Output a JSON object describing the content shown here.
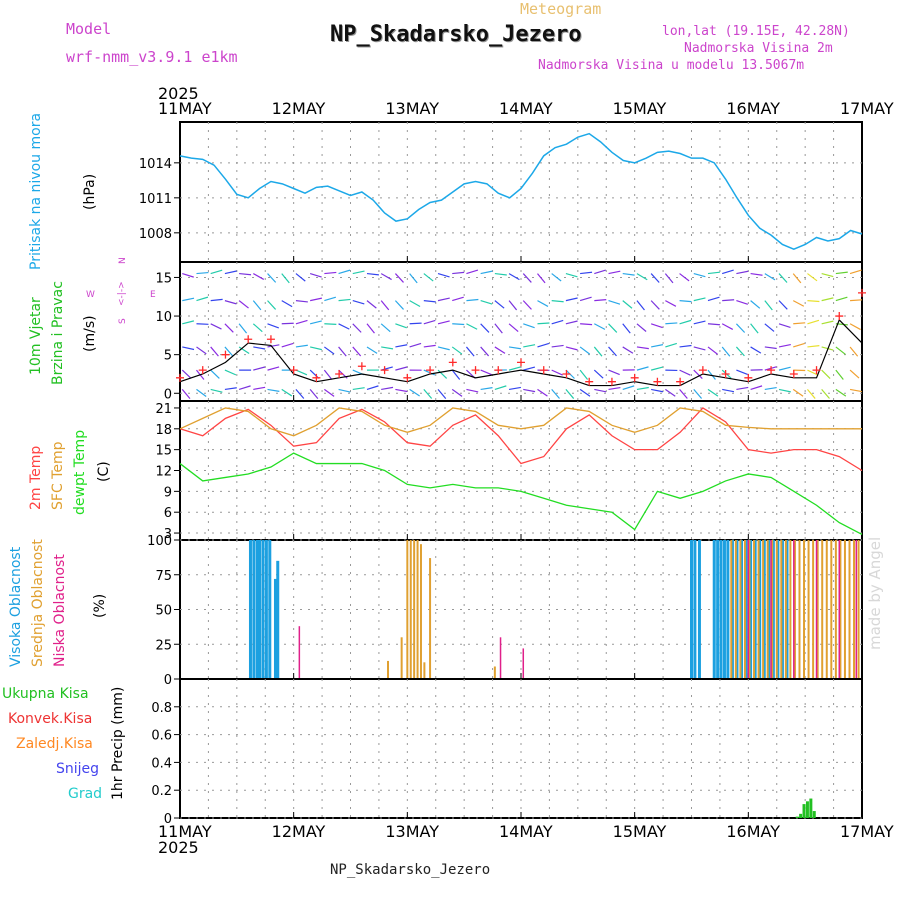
{
  "header": {
    "subtitle": "Meteogram",
    "title": "NP_Skadarsko_Jezero",
    "model_label": "Model",
    "model_name": "wrf-nmm_v3.9.1 e1km",
    "lonlat": "lon,lat (19.15E, 42.28N)",
    "elevation": "Nadmorska Visina 2m",
    "model_elevation": "Nadmorska Visina u modelu 13.5067m",
    "footer_station": "NP_Skadarsko_Jezero",
    "watermark": "made by Angel"
  },
  "time_axis": {
    "year": "2025",
    "ticks": [
      "11MAY",
      "12MAY",
      "13MAY",
      "14MAY",
      "15MAY",
      "16MAY",
      "17MAY"
    ]
  },
  "colors": {
    "pressure": "#1ca8e8",
    "wind_speed_line": "#000000",
    "gust_marker": "#ff2a2a",
    "temp_2m": "#ff4444",
    "temp_sfc": "#e0a030",
    "dewpoint": "#22dd22",
    "cloud_high": "#1ca0e0",
    "cloud_mid": "#e0a030",
    "cloud_low": "#e0208a",
    "precip_total": "#22c022",
    "label_pink": "#cc44cc",
    "label_orange": "#ff8822",
    "label_blue": "#4444ee",
    "label_teal": "#22cccc",
    "label_red": "#ee3333"
  },
  "panels": {
    "pressure": {
      "label": "Pritisak na nivou mora",
      "unit": "(hPa)"
    },
    "wind": {
      "label1": "10m Vjetar",
      "label2": "Brzina i Pravac",
      "unit": "(m/s)",
      "compass_n": "N",
      "compass_w": "W",
      "compass_e": "E",
      "compass_s": "S",
      "compass_ns": "<-|->"
    },
    "temperature": {
      "label1": "2m Temp",
      "label2": "SFC Temp",
      "label3": "dewpt Temp",
      "unit": "(C)"
    },
    "cloud": {
      "label1": "Visoka Oblacnost",
      "label2": "Srednja Oblacnost",
      "label3": "Niska Oblacnost",
      "unit": "(%)"
    },
    "precip": {
      "label": "1hr Precip (mm)",
      "legend": [
        "Ukupna Kisa",
        "Konvek.Kisa",
        "Zaledj.Kisa",
        "Snijeg",
        "Grad"
      ]
    }
  },
  "chart_data": [
    {
      "type": "line",
      "title": "Pritisak na nivou mora",
      "ylabel": "(hPa)",
      "ylim": [
        1005.5,
        1017.5
      ],
      "yticks": [
        1008,
        1011,
        1014
      ],
      "x_days": [
        0,
        0.1,
        0.2,
        0.3,
        0.4,
        0.5,
        0.6,
        0.7,
        0.8,
        0.9,
        1.0,
        1.1,
        1.2,
        1.3,
        1.4,
        1.5,
        1.6,
        1.7,
        1.8,
        1.9,
        2.0,
        2.1,
        2.2,
        2.3,
        2.4,
        2.5,
        2.6,
        2.7,
        2.8,
        2.9,
        3.0,
        3.1,
        3.2,
        3.3,
        3.4,
        3.5,
        3.6,
        3.7,
        3.8,
        3.9,
        4.0,
        4.1,
        4.2,
        4.3,
        4.4,
        4.5,
        4.6,
        4.7,
        4.8,
        4.9,
        5.0,
        5.1,
        5.2,
        5.3,
        5.4,
        5.5,
        5.6,
        5.7,
        5.8,
        5.9,
        6.0
      ],
      "series": [
        {
          "name": "Pritisak",
          "values": [
            1014.6,
            1014.4,
            1014.3,
            1013.8,
            1012.6,
            1011.3,
            1011.0,
            1011.8,
            1012.4,
            1012.2,
            1011.8,
            1011.4,
            1011.9,
            1012.0,
            1011.6,
            1011.2,
            1011.5,
            1010.8,
            1009.7,
            1009.0,
            1009.2,
            1010.0,
            1010.6,
            1010.8,
            1011.5,
            1012.2,
            1012.4,
            1012.2,
            1011.4,
            1011.0,
            1011.8,
            1013.1,
            1014.6,
            1015.3,
            1015.6,
            1016.2,
            1016.5,
            1015.8,
            1014.9,
            1014.2,
            1014.0,
            1014.4,
            1014.9,
            1015.0,
            1014.8,
            1014.4,
            1014.4,
            1014.0,
            1012.6,
            1011.0,
            1009.5,
            1008.4,
            1007.8,
            1007.0,
            1006.6,
            1007.0,
            1007.6,
            1007.3,
            1007.5,
            1008.2,
            1007.9
          ]
        }
      ]
    },
    {
      "type": "line",
      "title": "10m Vjetar Brzina i Pravac",
      "ylabel": "(m/s)",
      "ylim": [
        -1,
        17
      ],
      "yticks": [
        0,
        5,
        10,
        15
      ],
      "x_days": [
        0,
        0.2,
        0.4,
        0.6,
        0.8,
        1.0,
        1.2,
        1.4,
        1.6,
        1.8,
        2.0,
        2.2,
        2.4,
        2.6,
        2.8,
        3.0,
        3.2,
        3.4,
        3.6,
        3.8,
        4.0,
        4.2,
        4.4,
        4.6,
        4.8,
        5.0,
        5.2,
        5.4,
        5.6,
        5.8,
        6.0
      ],
      "series": [
        {
          "name": "Brzina",
          "values": [
            1.5,
            2.5,
            4.0,
            6.5,
            6.2,
            2.5,
            1.5,
            2.0,
            2.5,
            2.0,
            1.5,
            2.5,
            3.0,
            2.0,
            2.5,
            3.0,
            2.5,
            2.0,
            1.0,
            1.0,
            1.5,
            1.0,
            1.0,
            2.5,
            2.0,
            1.5,
            2.5,
            2.0,
            2.0,
            9.5,
            6.5
          ]
        },
        {
          "name": "Udar",
          "values": [
            2.0,
            3.0,
            5.0,
            7.0,
            7.0,
            3.0,
            2.0,
            2.5,
            3.5,
            3.0,
            2.0,
            3.0,
            4.0,
            3.0,
            3.0,
            4.0,
            3.0,
            2.5,
            1.5,
            1.5,
            2.0,
            1.5,
            1.5,
            3.0,
            2.5,
            2.0,
            3.0,
            2.5,
            3.0,
            10.0,
            13.0
          ]
        }
      ]
    },
    {
      "type": "line",
      "title": "2m Temp / SFC Temp / dewpt Temp",
      "ylabel": "(C)",
      "ylim": [
        2,
        22
      ],
      "yticks": [
        3,
        6,
        9,
        12,
        15,
        18,
        21
      ],
      "x_days": [
        0,
        0.2,
        0.4,
        0.6,
        0.8,
        1.0,
        1.2,
        1.4,
        1.6,
        1.8,
        2.0,
        2.2,
        2.4,
        2.6,
        2.8,
        3.0,
        3.2,
        3.4,
        3.6,
        3.8,
        4.0,
        4.2,
        4.4,
        4.6,
        4.8,
        5.0,
        5.2,
        5.4,
        5.6,
        5.8,
        6.0
      ],
      "series": [
        {
          "name": "2m Temp",
          "values": [
            18,
            17,
            19.5,
            20.8,
            18.5,
            15.5,
            16,
            19.5,
            20.8,
            19,
            16,
            15.5,
            18.5,
            20,
            17,
            13,
            14,
            18,
            20,
            17,
            15,
            15,
            17.5,
            21,
            19,
            15,
            14.5,
            15,
            15,
            14,
            12
          ]
        },
        {
          "name": "SFC Temp",
          "values": [
            18,
            19.5,
            21,
            20.5,
            18,
            17,
            18.5,
            21,
            20.5,
            18.5,
            17.5,
            18.5,
            21,
            20.5,
            18.5,
            18,
            18.5,
            21,
            20.5,
            18.5,
            17.5,
            18.5,
            21,
            20.5,
            18.5,
            18.2,
            18,
            18,
            18,
            18,
            18
          ]
        },
        {
          "name": "dewpt Temp",
          "values": [
            13,
            10.5,
            11,
            11.5,
            12.5,
            14.5,
            13,
            13,
            13,
            12,
            10,
            9.5,
            10,
            9.5,
            9.5,
            9,
            8,
            7,
            6.5,
            6,
            3.5,
            9,
            8,
            9,
            10.5,
            11.5,
            11,
            9,
            7,
            4.5,
            2.8
          ]
        }
      ]
    },
    {
      "type": "bar",
      "title": "Visoka / Srednja / Niska Oblacnost",
      "ylabel": "(%)",
      "ylim": [
        0,
        100
      ],
      "yticks": [
        0,
        25,
        50,
        75,
        100
      ],
      "series": [
        {
          "name": "Visoka Oblacnost",
          "x_days": [
            0.62,
            0.65,
            0.68,
            0.7,
            0.73,
            0.76,
            0.79,
            0.84,
            0.86,
            4.5,
            4.53,
            4.57,
            4.7,
            4.73,
            4.76,
            4.79,
            4.82,
            4.86,
            4.9,
            4.94,
            4.98,
            5.02,
            5.06,
            5.1,
            5.14,
            5.18,
            5.22,
            5.26,
            5.3,
            5.34
          ],
          "values": [
            100,
            100,
            100,
            100,
            100,
            100,
            100,
            72,
            85,
            100,
            100,
            100,
            100,
            100,
            100,
            100,
            100,
            100,
            100,
            100,
            100,
            100,
            100,
            100,
            100,
            100,
            100,
            100,
            100,
            100
          ]
        },
        {
          "name": "Srednja Oblacnost",
          "x_days": [
            1.83,
            1.95,
            2.0,
            2.03,
            2.06,
            2.09,
            2.12,
            2.15,
            2.2,
            2.77,
            4.85,
            4.89,
            4.93,
            4.97,
            5.01,
            5.05,
            5.09,
            5.13,
            5.17,
            5.21,
            5.25,
            5.29,
            5.33,
            5.37,
            5.41,
            5.45,
            5.49,
            5.53,
            5.57,
            5.61,
            5.65,
            5.69,
            5.73,
            5.77,
            5.81,
            5.85,
            5.89,
            5.93,
            5.97
          ],
          "values": [
            13,
            30,
            100,
            100,
            100,
            100,
            97,
            12,
            87,
            9,
            100,
            100,
            100,
            100,
            100,
            100,
            100,
            100,
            100,
            100,
            100,
            100,
            100,
            100,
            100,
            100,
            100,
            100,
            100,
            100,
            100,
            100,
            100,
            100,
            100,
            100,
            100,
            100,
            100
          ]
        },
        {
          "name": "Niska Oblacnost",
          "x_days": [
            1.05,
            2.82,
            3.02,
            5.0,
            5.2,
            5.4,
            5.6,
            5.8,
            5.95
          ],
          "values": [
            38,
            30,
            22,
            100,
            100,
            100,
            100,
            100,
            100
          ]
        }
      ]
    },
    {
      "type": "bar",
      "title": "1hr Precip",
      "ylabel": "1hr Precip (mm)",
      "ylim": [
        0,
        1.0
      ],
      "yticks": [
        0,
        0.2,
        0.4,
        0.6,
        0.8
      ],
      "series": [
        {
          "name": "Ukupna Kisa",
          "x_days": [
            5.43,
            5.46,
            5.49,
            5.52,
            5.55,
            5.58
          ],
          "values": [
            0.01,
            0.03,
            0.1,
            0.12,
            0.14,
            0.05
          ]
        }
      ]
    }
  ]
}
